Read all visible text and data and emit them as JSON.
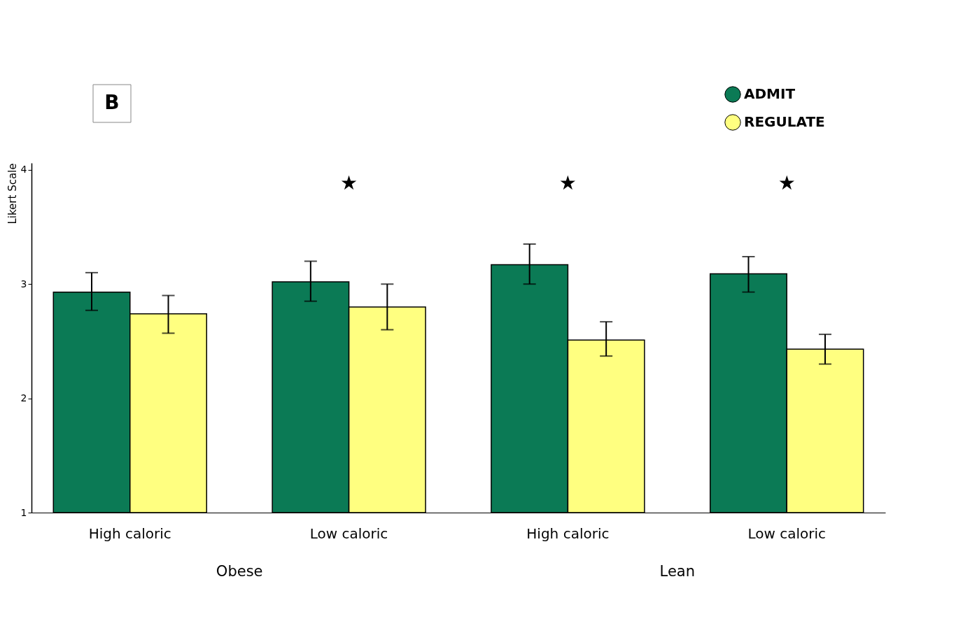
{
  "chart_data": {
    "type": "bar",
    "ylabel": "Likert Scale",
    "categories": [
      "High caloric",
      "Low caloric",
      "High caloric",
      "Low caloric"
    ],
    "series": [
      {
        "name": "ADMIT",
        "color": "#0b7a55",
        "values": [
          2.93,
          3.02,
          3.17,
          3.09
        ],
        "errors": [
          [
            2.77,
            3.1
          ],
          [
            2.85,
            3.2
          ],
          [
            3.0,
            3.35
          ],
          [
            2.93,
            3.24
          ]
        ]
      },
      {
        "name": "REGULATE",
        "color": "#ffff80",
        "values": [
          2.74,
          2.8,
          2.51,
          2.43
        ],
        "errors": [
          [
            2.57,
            2.9
          ],
          [
            2.6,
            3.0
          ],
          [
            2.37,
            2.67
          ],
          [
            2.3,
            2.56
          ]
        ]
      }
    ],
    "ylim": [
      1,
      4.06
    ],
    "yticks": [
      1,
      2,
      3,
      4
    ],
    "annotations": [
      "B",
      "Obese",
      "Lean",
      "★",
      "★",
      "★"
    ],
    "legend": "top right",
    "grid": false
  }
}
